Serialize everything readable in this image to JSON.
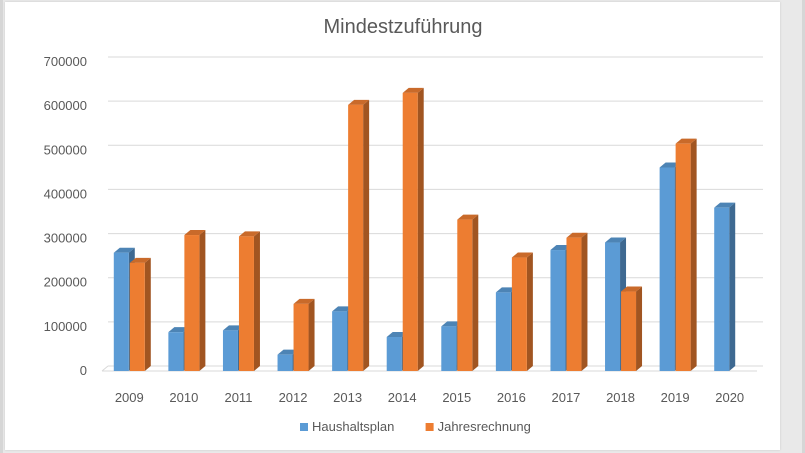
{
  "chart_data": {
    "type": "bar",
    "title": "Mindestzuführung",
    "xlabel": "",
    "ylabel": "",
    "categories": [
      "2009",
      "2010",
      "2011",
      "2012",
      "2013",
      "2014",
      "2015",
      "2016",
      "2017",
      "2018",
      "2019",
      "2020"
    ],
    "series": [
      {
        "name": "Haushaltsplan",
        "color": "#5b9bd5",
        "values": [
          268000,
          88000,
          92000,
          37000,
          135000,
          77000,
          101000,
          178000,
          274000,
          291000,
          461000,
          370000
        ]
      },
      {
        "name": "Jahresrechnung",
        "color": "#ed7d31",
        "values": [
          245000,
          308000,
          305000,
          152000,
          603000,
          630000,
          343000,
          257000,
          302000,
          180000,
          515000,
          null
        ]
      }
    ],
    "ylim": [
      0,
      700000
    ],
    "yticks": [
      0,
      100000,
      200000,
      300000,
      400000,
      500000,
      600000,
      700000
    ],
    "grid": true,
    "legend": "bottom"
  }
}
